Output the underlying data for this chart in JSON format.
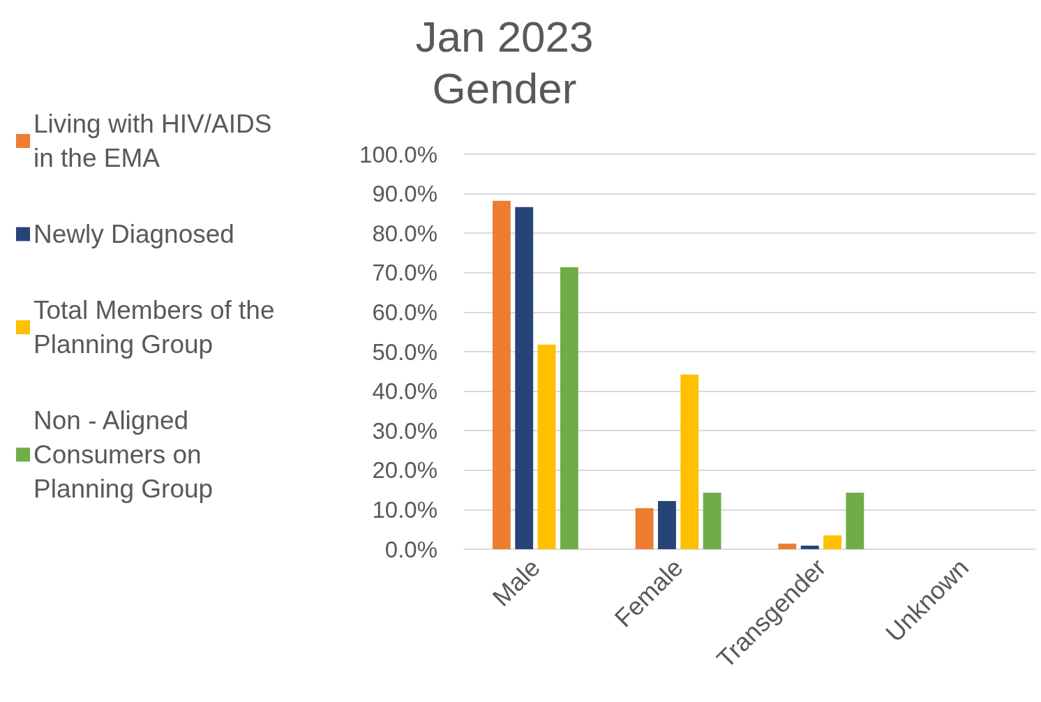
{
  "chart_data": {
    "type": "bar",
    "title": "Jan 2023\nGender",
    "categories": [
      "Male",
      "Female",
      "Transgender",
      "Unknown"
    ],
    "series": [
      {
        "name": "Living with HIV/AIDS in the EMA",
        "color": "#ed7d31",
        "values": [
          88.2,
          10.4,
          1.4,
          0
        ]
      },
      {
        "name": "Newly Diagnosed",
        "color": "#264478",
        "values": [
          86.6,
          12.2,
          0.9,
          0
        ]
      },
      {
        "name": "Total Members of the Planning Group",
        "color": "#ffc000",
        "values": [
          51.8,
          44.2,
          3.5,
          0
        ]
      },
      {
        "name": "Non - Aligned Consumers on Planning Group",
        "color": "#70ad47",
        "values": [
          71.4,
          14.3,
          14.3,
          0
        ]
      }
    ],
    "ylim": [
      0,
      100
    ],
    "yticks": [
      {
        "value": 0,
        "label": "0.0%"
      },
      {
        "value": 10,
        "label": "10.0%"
      },
      {
        "value": 20,
        "label": "20.0%"
      },
      {
        "value": 30,
        "label": "30.0%"
      },
      {
        "value": 40,
        "label": "40.0%"
      },
      {
        "value": 50,
        "label": "50.0%"
      },
      {
        "value": 60,
        "label": "60.0%"
      },
      {
        "value": 70,
        "label": "70.0%"
      },
      {
        "value": 80,
        "label": "80.0%"
      },
      {
        "value": 90,
        "label": "90.0%"
      },
      {
        "value": 100,
        "label": "100.0%"
      }
    ],
    "grid": "y",
    "legend": "left"
  }
}
